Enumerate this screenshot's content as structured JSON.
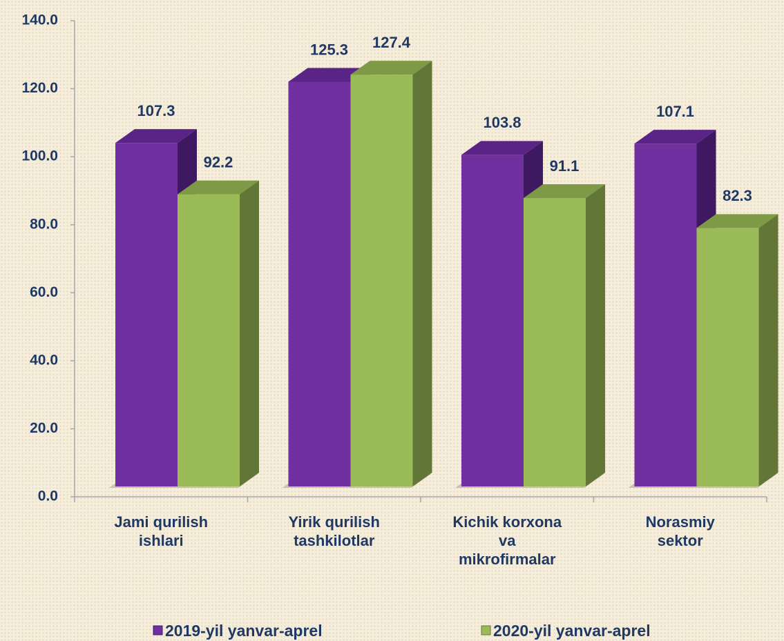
{
  "chart_data": {
    "type": "bar3d",
    "categories": [
      "Jami qurilish\nishlari",
      "Yirik qurilish\ntashkilotlar",
      "Kichik korxona\nva\nmikrofirmalar",
      "Norasmiy\nsektor"
    ],
    "series": [
      {
        "name": "2019-yil yanvar-aprel",
        "color": "#7030a0",
        "values": [
          107.3,
          125.3,
          103.8,
          107.1
        ]
      },
      {
        "name": "2020-yil yanvar-aprel",
        "color": "#9bbb59",
        "values": [
          92.2,
          127.4,
          91.1,
          82.3
        ]
      }
    ],
    "ylim": [
      0,
      140
    ],
    "yticks": [
      {
        "value": 0,
        "label": "0.0"
      },
      {
        "value": 20,
        "label": "20.0"
      },
      {
        "value": 40,
        "label": "40.0"
      },
      {
        "value": 60,
        "label": "60.0"
      },
      {
        "value": 80,
        "label": "80.0"
      },
      {
        "value": 100,
        "label": "100.0"
      },
      {
        "value": 120,
        "label": "120.0"
      },
      {
        "value": 140,
        "label": "140.0"
      }
    ],
    "legend": "bottom"
  }
}
